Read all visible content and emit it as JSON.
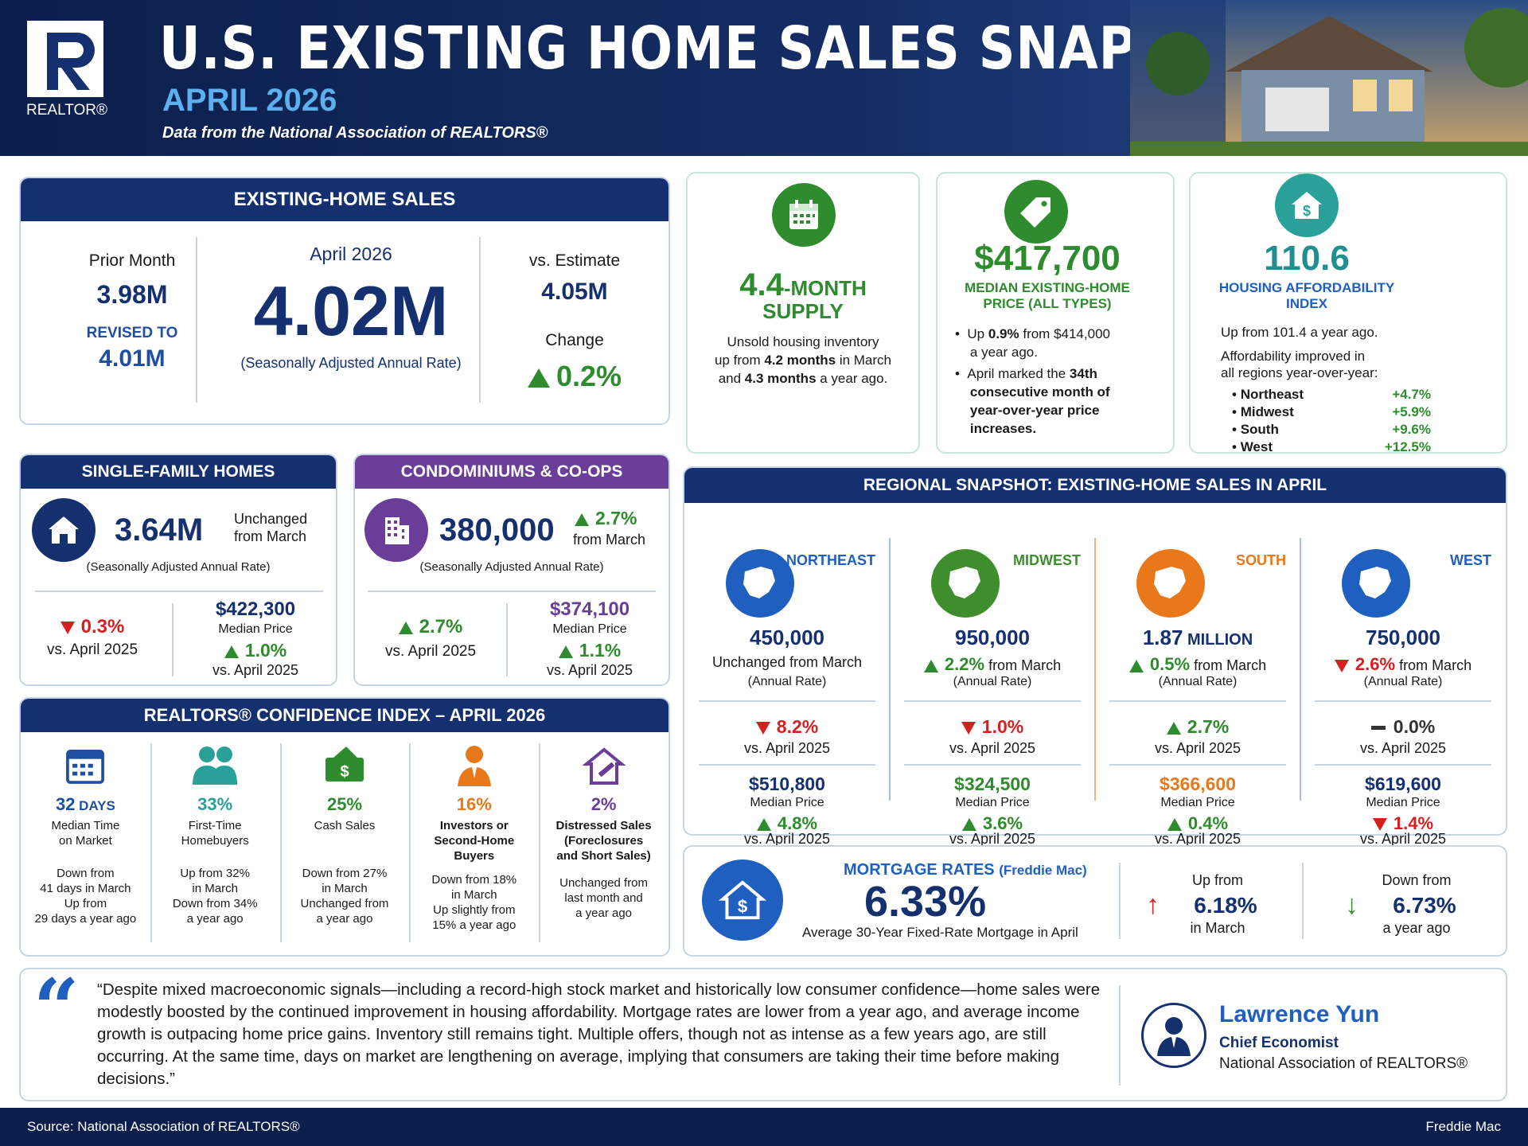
{
  "header": {
    "title": "U.S. EXISTING HOME SALES SNAPSHOT",
    "subtitle": "APRIL 2026",
    "tagline": "Data from the National Association of REALTORS®",
    "logo_text": "REALTOR®"
  },
  "ehs": {
    "head": "EXISTING-HOME SALES",
    "prior_label": "Prior Month",
    "prior_value": "3.98M",
    "revised_label": "REVISED TO",
    "revised_value": "4.01M",
    "month_label": "April 2026",
    "main_value": "4.02M",
    "saar": "(Seasonally Adjusted Annual Rate)",
    "estimate_label": "vs. Estimate",
    "estimate_value": "4.05M",
    "change_label": "Change",
    "change_value": "0.2%"
  },
  "supply": {
    "value": "4.4",
    "unit": "-MONTH",
    "unit2": "SUPPLY",
    "line1": "Unsold housing inventory",
    "line2a": "up from ",
    "line2b": "4.2 months",
    "line2c": " in March",
    "line3a": "and ",
    "line3b": "4.3 months",
    "line3c": " a year ago."
  },
  "price": {
    "value": "$417,700",
    "label1": "MEDIAN EXISTING-HOME",
    "label2": "PRICE (ALL TYPES)",
    "b1a": "Up ",
    "b1b": "0.9%",
    "b1c": " from $414,000",
    "b1d": "a year ago.",
    "b2a": "April marked the ",
    "b2b": "34th",
    "b2c": "consecutive month of",
    "b2d": "year-over-year price",
    "b2e": "increases."
  },
  "afford": {
    "value": "110.6",
    "label1": "HOUSING AFFORDABILITY",
    "label2": "INDEX",
    "line1": "Up from 101.4 a year ago.",
    "line2": "Affordability improved in",
    "line3": "all regions year-over-year:",
    "regions": [
      {
        "name": "Northeast",
        "val": "+4.7%"
      },
      {
        "name": "Midwest",
        "val": "+5.9%"
      },
      {
        "name": "South",
        "val": "+9.6%"
      },
      {
        "name": "West",
        "val": "+12.5%"
      }
    ]
  },
  "sf": {
    "head": "SINGLE-FAMILY HOMES",
    "value": "3.64M",
    "note1": "Unchanged",
    "note2": "from March",
    "saar": "(Seasonally Adjusted Annual Rate)",
    "yoy": "0.3%",
    "yoy_label": "vs. April 2025",
    "price": "$422,300",
    "price_label": "Median Price",
    "price_chg": "1.0%",
    "price_vs": "vs. April 2025"
  },
  "condo": {
    "head": "CONDOMINIUMS & CO-OPS",
    "value": "380,000",
    "chg": "2.7%",
    "chg_label": "from March",
    "saar": "(Seasonally Adjusted Annual Rate)",
    "yoy": "2.7%",
    "yoy_label": "vs. April 2025",
    "price": "$374,100",
    "price_label": "Median Price",
    "price_chg": "1.1%",
    "price_vs": "vs. April 2025"
  },
  "regional": {
    "head": "REGIONAL SNAPSHOT: EXISTING-HOME SALES IN APRIL",
    "regions": [
      {
        "name": "NORTHEAST",
        "color": "#1f5fbf",
        "sales": "450,000",
        "sales_unit": "",
        "mom": "Unchanged from March",
        "mom_dir": "none",
        "annual": "(Annual Rate)",
        "yoy": "8.2%",
        "yoy_dir": "down",
        "yoy_label": "vs. April 2025",
        "price": "$510,800",
        "price_label": "Median Price",
        "price_chg": "4.8%",
        "price_dir": "up",
        "price_vs": "vs. April 2025"
      },
      {
        "name": "MIDWEST",
        "color": "#3e8e2e",
        "sales": "950,000",
        "sales_unit": "",
        "mom": "2.2%",
        "mom_tail": " from March",
        "mom_dir": "up",
        "annual": "(Annual Rate)",
        "yoy": "1.0%",
        "yoy_dir": "down",
        "yoy_label": "vs. April 2025",
        "price": "$324,500",
        "price_label": "Median Price",
        "price_chg": "3.6%",
        "price_dir": "up",
        "price_vs": "vs. April 2025"
      },
      {
        "name": "SOUTH",
        "color": "#e8781a",
        "sales": "1.87",
        "sales_unit": " MILLION",
        "mom": "0.5%",
        "mom_tail": " from March",
        "mom_dir": "up",
        "annual": "(Annual Rate)",
        "yoy": "2.7%",
        "yoy_dir": "up",
        "yoy_label": "vs. April 2025",
        "price": "$366,600",
        "price_label": "Median Price",
        "price_chg": "0.4%",
        "price_dir": "up",
        "price_vs": "vs. April 2025"
      },
      {
        "name": "WEST",
        "color": "#1f5fbf",
        "sales": "750,000",
        "sales_unit": "",
        "mom": "2.6%",
        "mom_tail": " from March",
        "mom_dir": "down",
        "annual": "(Annual Rate)",
        "yoy": "0.0%",
        "yoy_dir": "flat",
        "yoy_label": "vs. April 2025",
        "price": "$619,600",
        "price_label": "Median Price",
        "price_chg": "1.4%",
        "price_dir": "down",
        "price_vs": "vs. April 2025"
      }
    ]
  },
  "rci": {
    "head": "REALTORS® CONFIDENCE INDEX – APRIL 2026",
    "items": [
      {
        "value": "32",
        "unit": " DAYS",
        "label": "Median Time|on Market",
        "notes": "Down from|41 days in March|Up from|29 days a year ago",
        "color": "#1f4fa0"
      },
      {
        "value": "33%",
        "unit": "",
        "label": "First-Time|Homebuyers",
        "notes": "Up from 32%|in March|Down from 34%|a year ago",
        "color": "#2aa198"
      },
      {
        "value": "25%",
        "unit": "",
        "label": "Cash Sales",
        "notes": "Down from 27%|in March|Unchanged from|a year ago",
        "color": "#2e8b2e"
      },
      {
        "value": "16%",
        "unit": "",
        "label": "Investors or|Second-Home|Buyers",
        "notes": "Down from 18%|in March|Up slightly from|15% a year ago",
        "color": "#e8781a"
      },
      {
        "value": "2%",
        "unit": "",
        "label": "Distressed Sales|(Foreclosures|and Short Sales)",
        "notes": "Unchanged from|last month and|a year ago",
        "color": "#6a3e98"
      }
    ]
  },
  "mortgage": {
    "title": "MORTGAGE RATES",
    "source": "(Freddie Mac)",
    "value": "6.33%",
    "label": "Average 30-Year Fixed-Rate Mortgage in April",
    "up_label": "Up from",
    "up_value": "6.18%",
    "up_when": "in March",
    "down_label": "Down from",
    "down_value": "6.73%",
    "down_when": "a year ago"
  },
  "quote": {
    "text": "“Despite mixed macroeconomic signals—including a record-high stock market and historically low consumer confidence—home sales were modestly boosted by the continued improvement in housing affordability.  Mortgage rates are lower from a year ago, and average income growth is outpacing home price gains. Inventory still remains tight. Multiple offers, though not as intense as a few years ago, are still occurring. At the same time, days on market are lengthening on average, implying that consumers are taking their time before making decisions.”",
    "name": "Lawrence Yun",
    "role": "Chief Economist",
    "org": "National Association of REALTORS®"
  },
  "footer": {
    "source": "Source: National Association of REALTORS®",
    "right": "Freddie Mac"
  }
}
